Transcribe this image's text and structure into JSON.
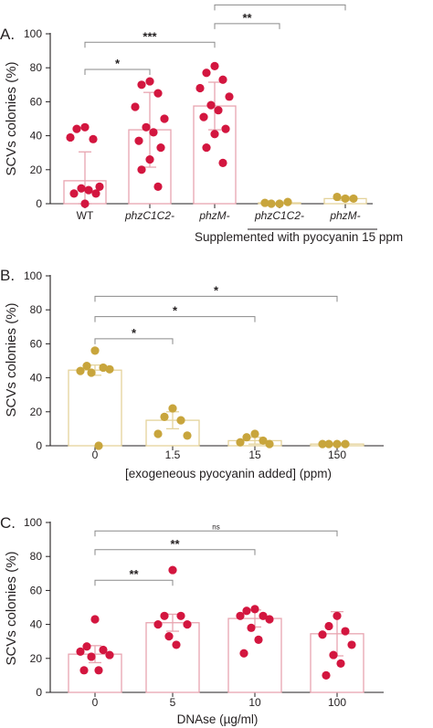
{
  "colors": {
    "red": "#d3163f",
    "gold": "#c8a53c",
    "redBar": "#e8a5b0",
    "goldBar": "#e4d39b"
  },
  "chart_data": [
    {
      "type": "bar",
      "panel": "A.",
      "ylabel": "SCVs colonies (%)",
      "ylim": [
        0,
        100
      ],
      "yticks": [
        0,
        20,
        40,
        60,
        80,
        100
      ],
      "grid": false,
      "supplement_label": "Supplemented  with pyocyanin 15 ppm",
      "categories": [
        {
          "label": "WT",
          "italic": false,
          "mean": 13.5,
          "sd": 17,
          "color": "red",
          "points": [
            45,
            44,
            38,
            39,
            10,
            9,
            8,
            6,
            6,
            0
          ]
        },
        {
          "label": "phzC1C2-",
          "italic": true,
          "mean": 43.5,
          "sd": 22,
          "color": "red",
          "points": [
            72,
            70,
            65,
            57,
            50,
            45,
            42,
            37,
            33,
            26,
            20,
            10
          ]
        },
        {
          "label": "phzM-",
          "italic": true,
          "mean": 57.5,
          "sd": 14,
          "color": "red",
          "points": [
            81,
            77,
            73,
            68,
            63,
            58,
            55,
            51,
            44,
            41,
            33,
            24
          ]
        },
        {
          "label": "phzC1C2-",
          "italic": true,
          "mean": 0.5,
          "sd": 0,
          "color": "gold",
          "points": [
            0,
            0,
            1,
            0.5
          ]
        },
        {
          "label": "phzM-",
          "italic": true,
          "mean": 3,
          "sd": 1,
          "color": "gold",
          "points": [
            3,
            4,
            3
          ]
        }
      ],
      "comparisons": [
        {
          "from": 0,
          "to": 1,
          "y": 79,
          "label": "*"
        },
        {
          "from": 0,
          "to": 2,
          "y": 95,
          "label": "***"
        },
        {
          "from": 2,
          "to": 3,
          "y": 106,
          "label": "**"
        },
        {
          "from": 2,
          "to": 4,
          "y": 117,
          "label": "**"
        }
      ]
    },
    {
      "type": "bar",
      "panel": "B.",
      "ylabel": "SCVs colonies (%)",
      "xlabel": "[exogeneous pyocyanin added] (ppm)",
      "ylim": [
        0,
        100
      ],
      "yticks": [
        0,
        20,
        40,
        60,
        80,
        100
      ],
      "grid": false,
      "categories": [
        {
          "label": "0",
          "italic": false,
          "mean": 44.5,
          "sd": 3,
          "color": "gold",
          "points": [
            56,
            47,
            46,
            44,
            45,
            43,
            0
          ]
        },
        {
          "label": "1.5",
          "italic": false,
          "mean": 15,
          "sd": 5,
          "color": "gold",
          "points": [
            22,
            17,
            15,
            7,
            6
          ]
        },
        {
          "label": "15",
          "italic": false,
          "mean": 3,
          "sd": 2,
          "color": "gold",
          "points": [
            7,
            5,
            3,
            2,
            1
          ]
        },
        {
          "label": "150",
          "italic": false,
          "mean": 1,
          "sd": 0,
          "color": "gold",
          "points": [
            1,
            1,
            1,
            1
          ]
        }
      ],
      "comparisons": [
        {
          "from": 0,
          "to": 1,
          "y": 63,
          "label": "*"
        },
        {
          "from": 0,
          "to": 2,
          "y": 76,
          "label": "*"
        },
        {
          "from": 0,
          "to": 3,
          "y": 88,
          "label": "*"
        }
      ]
    },
    {
      "type": "bar",
      "panel": "C.",
      "ylabel": "SCVs colonies (%)",
      "xlabel": "DNAse (µg/ml)",
      "ylim": [
        0,
        100
      ],
      "yticks": [
        0,
        20,
        40,
        60,
        80,
        100
      ],
      "grid": false,
      "categories": [
        {
          "label": "0",
          "italic": false,
          "mean": 22.5,
          "sd": 5,
          "color": "red",
          "points": [
            43,
            27,
            25,
            24,
            22,
            21,
            13,
            13
          ]
        },
        {
          "label": "5",
          "italic": false,
          "mean": 41,
          "sd": 5,
          "color": "red",
          "points": [
            72,
            45,
            45,
            40,
            40,
            33,
            28
          ]
        },
        {
          "label": "10",
          "italic": false,
          "mean": 43.5,
          "sd": 5,
          "color": "red",
          "points": [
            49,
            48,
            45,
            45,
            43,
            38,
            31,
            23
          ]
        },
        {
          "label": "100",
          "italic": false,
          "mean": 34.5,
          "sd": 13,
          "color": "red",
          "points": [
            45,
            39,
            36,
            34,
            28,
            22,
            17,
            10
          ]
        }
      ],
      "comparisons": [
        {
          "from": 0,
          "to": 1,
          "y": 66,
          "label": "**"
        },
        {
          "from": 0,
          "to": 2,
          "y": 84,
          "label": "**"
        },
        {
          "from": 0,
          "to": 3,
          "y": 95,
          "label": "ns"
        }
      ]
    }
  ]
}
